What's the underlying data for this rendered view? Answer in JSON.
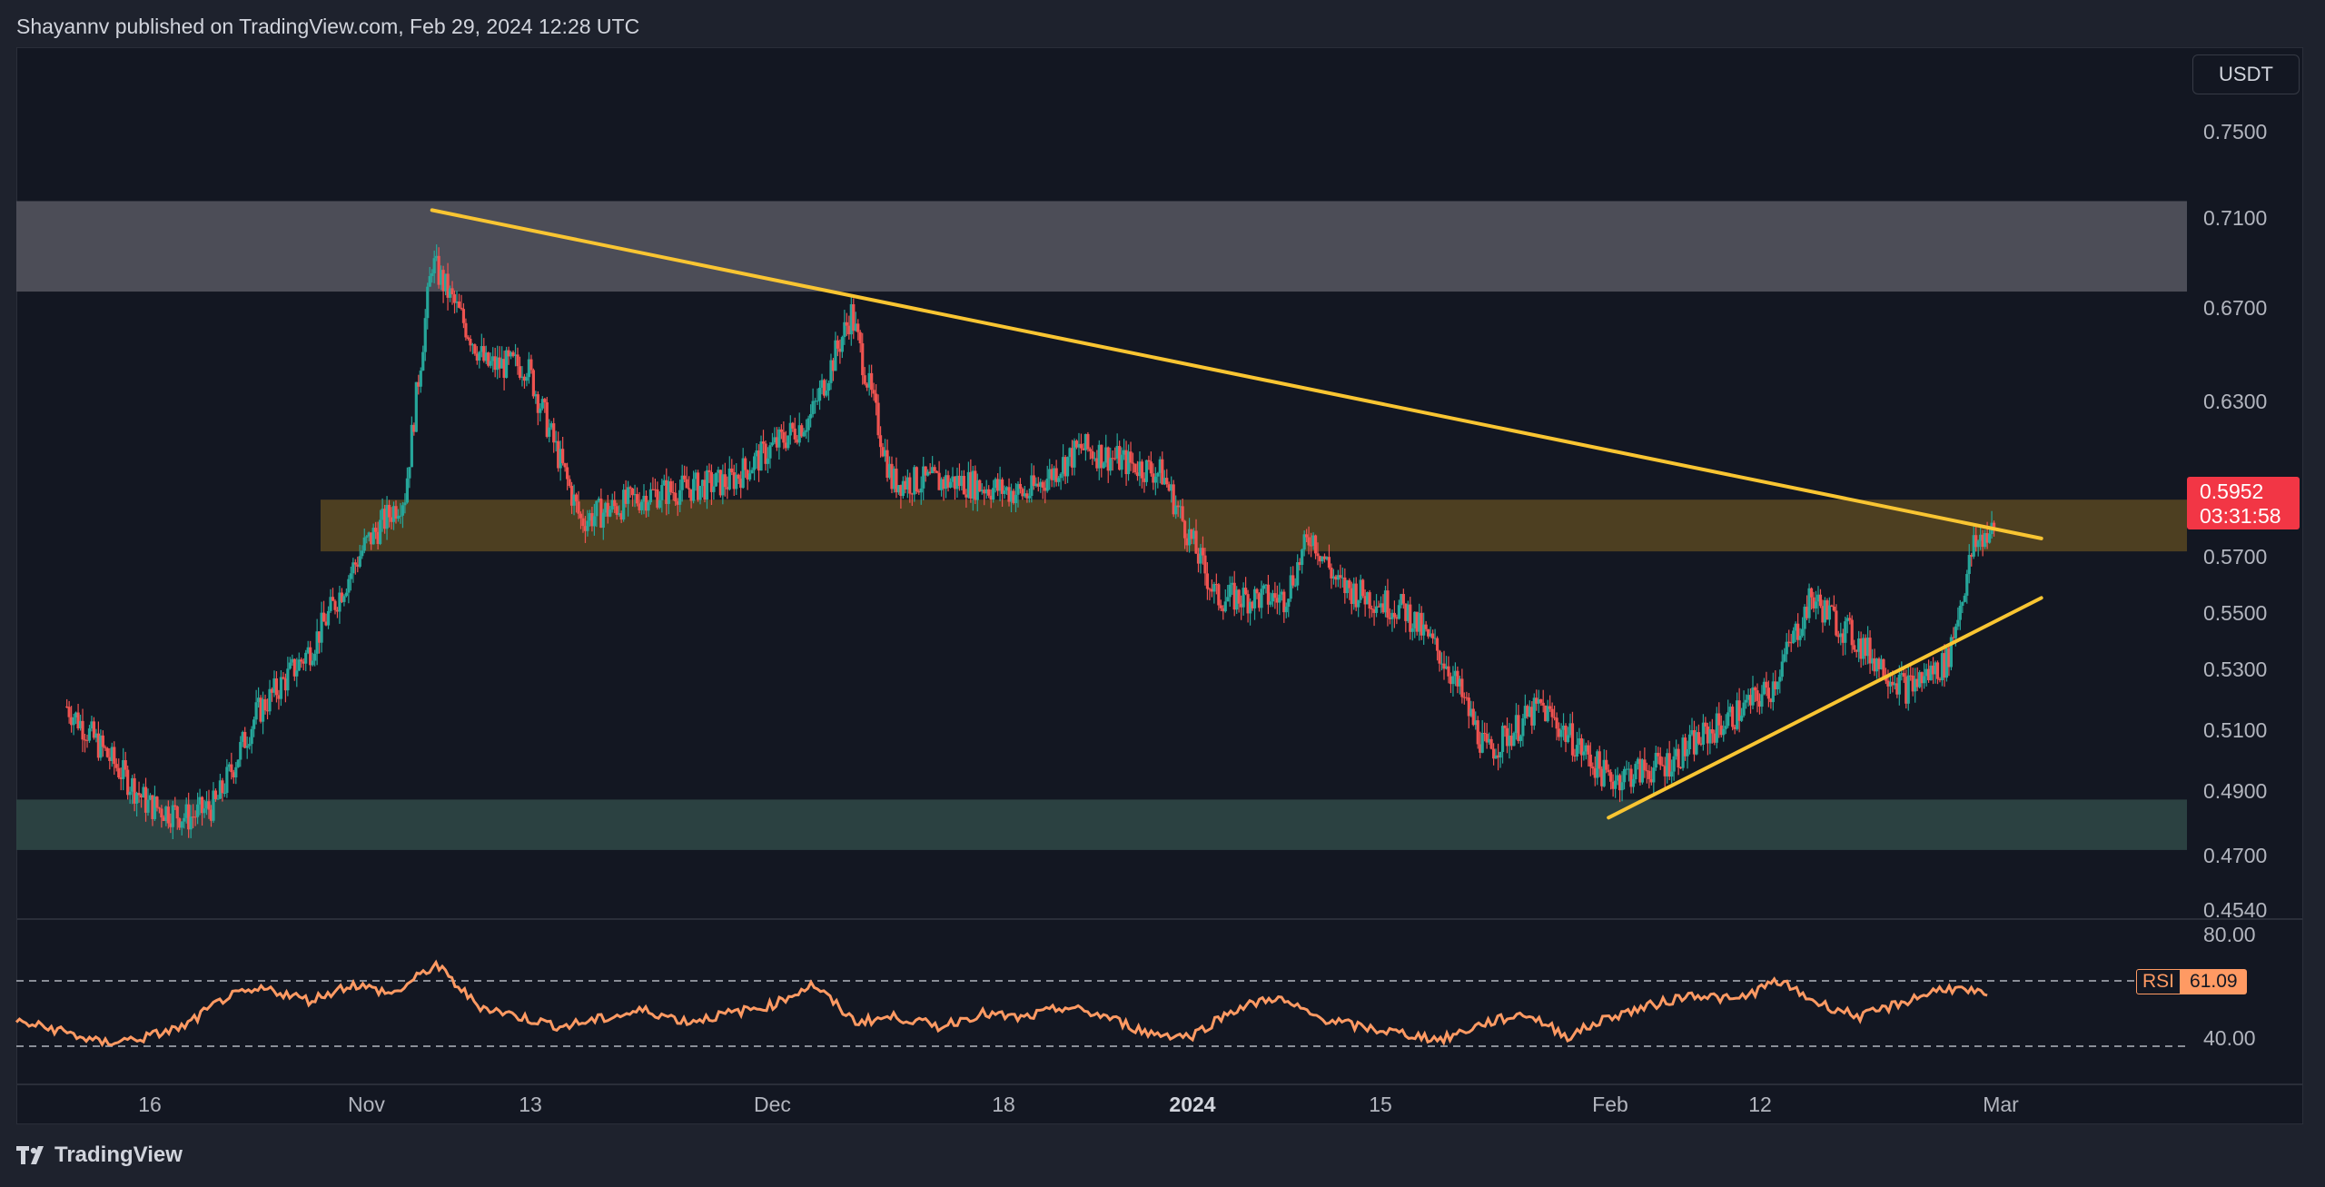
{
  "header": {
    "publisher_line": "Shayannv published on TradingView.com, Feb 29, 2024 12:28 UTC"
  },
  "currency": "USDT",
  "price_axis": {
    "labels": [
      "0.7500",
      "0.7100",
      "0.6700",
      "0.6300",
      "0.5700",
      "0.5500",
      "0.5300",
      "0.5100",
      "0.4900",
      "0.4700",
      "0.4540"
    ]
  },
  "current_price": {
    "value": "0.5952",
    "countdown": "03:31:58"
  },
  "time_axis": {
    "labels": [
      "16",
      "Nov",
      "13",
      "Dec",
      "18",
      "2024",
      "15",
      "Feb",
      "12",
      "Mar"
    ]
  },
  "rsi": {
    "label": "RSI",
    "value": "61.09",
    "axis_labels": [
      "80.00",
      "40.00"
    ]
  },
  "footer": {
    "brand": "TradingView"
  },
  "colors": {
    "background": "#131722",
    "candle_up": "#26a69a",
    "candle_down": "#ef5350",
    "trendline": "#f9c532",
    "resistance_zone": "#4f505b",
    "mid_zone": "#5c4a22",
    "support_zone": "#2c4343",
    "rsi_line": "#ff9a63",
    "price_badge": "#f23645"
  },
  "chart_data": {
    "type": "candlestick",
    "symbol_quote": "USDT",
    "ylim": [
      0.454,
      0.7575
    ],
    "x_tick_labels": [
      "16",
      "Nov",
      "13",
      "Dec",
      "18",
      "2024",
      "15",
      "Feb",
      "12",
      "Mar"
    ],
    "last_price": 0.5952,
    "price_path_approx": [
      {
        "x": "Oct 10",
        "y": 0.528
      },
      {
        "x": "Oct 16",
        "y": 0.49
      },
      {
        "x": "Oct 19",
        "y": 0.485
      },
      {
        "x": "Oct 21",
        "y": 0.49
      },
      {
        "x": "Oct 24",
        "y": 0.525
      },
      {
        "x": "Oct 28",
        "y": 0.55
      },
      {
        "x": "Nov 1",
        "y": 0.59
      },
      {
        "x": "Nov 4",
        "y": 0.61
      },
      {
        "x": "Nov 6",
        "y": 0.7
      },
      {
        "x": "Nov 10",
        "y": 0.66
      },
      {
        "x": "Nov 13",
        "y": 0.66
      },
      {
        "x": "Nov 17",
        "y": 0.6
      },
      {
        "x": "Nov 22",
        "y": 0.61
      },
      {
        "x": "Nov 28",
        "y": 0.615
      },
      {
        "x": "Dec 4",
        "y": 0.64
      },
      {
        "x": "Dec 7",
        "y": 0.68
      },
      {
        "x": "Dec 10",
        "y": 0.615
      },
      {
        "x": "Dec 15",
        "y": 0.615
      },
      {
        "x": "Dec 20",
        "y": 0.61
      },
      {
        "x": "Dec 24",
        "y": 0.628
      },
      {
        "x": "Dec 30",
        "y": 0.618
      },
      {
        "x": "Jan 3",
        "y": 0.57
      },
      {
        "x": "Jan 8",
        "y": 0.57
      },
      {
        "x": "Jan 10",
        "y": 0.595
      },
      {
        "x": "Jan 12",
        "y": 0.575
      },
      {
        "x": "Jan 17",
        "y": 0.565
      },
      {
        "x": "Jan 20",
        "y": 0.545
      },
      {
        "x": "Jan 23",
        "y": 0.51
      },
      {
        "x": "Jan 27",
        "y": 0.528
      },
      {
        "x": "Feb 1",
        "y": 0.5
      },
      {
        "x": "Feb 5",
        "y": 0.505
      },
      {
        "x": "Feb 9",
        "y": 0.52
      },
      {
        "x": "Feb 13",
        "y": 0.535
      },
      {
        "x": "Feb 16",
        "y": 0.57
      },
      {
        "x": "Feb 19",
        "y": 0.555
      },
      {
        "x": "Feb 23",
        "y": 0.535
      },
      {
        "x": "Feb 26",
        "y": 0.545
      },
      {
        "x": "Feb 28",
        "y": 0.59
      },
      {
        "x": "Feb 29",
        "y": 0.5952
      }
    ],
    "zones": [
      {
        "name": "resistance",
        "from": 0.6885,
        "to": 0.7235
      },
      {
        "name": "mid",
        "from": 0.588,
        "to": 0.608
      },
      {
        "name": "support",
        "from": 0.4725,
        "to": 0.492
      }
    ],
    "trendlines": [
      {
        "name": "descending",
        "from": {
          "x": "Nov 6",
          "y": 0.72
        },
        "to": {
          "x": "Mar 4",
          "y": 0.593
        }
      },
      {
        "name": "ascending",
        "from": {
          "x": "Feb 1",
          "y": 0.485
        },
        "to": {
          "x": "Mar 4",
          "y": 0.57
        }
      }
    ],
    "rsi": {
      "ylim": [
        20,
        100
      ],
      "levels": [
        70,
        30
      ],
      "last": 61.09,
      "path_approx": [
        45,
        40,
        32,
        35,
        42,
        60,
        65,
        58,
        68,
        62,
        80,
        55,
        48,
        42,
        47,
        52,
        45,
        50,
        55,
        68,
        45,
        48,
        42,
        50,
        47,
        54,
        48,
        38,
        36,
        52,
        60,
        48,
        42,
        38,
        34,
        44,
        50,
        36,
        48,
        55,
        62,
        58,
        70,
        56,
        48,
        57,
        66,
        61.09
      ]
    }
  }
}
